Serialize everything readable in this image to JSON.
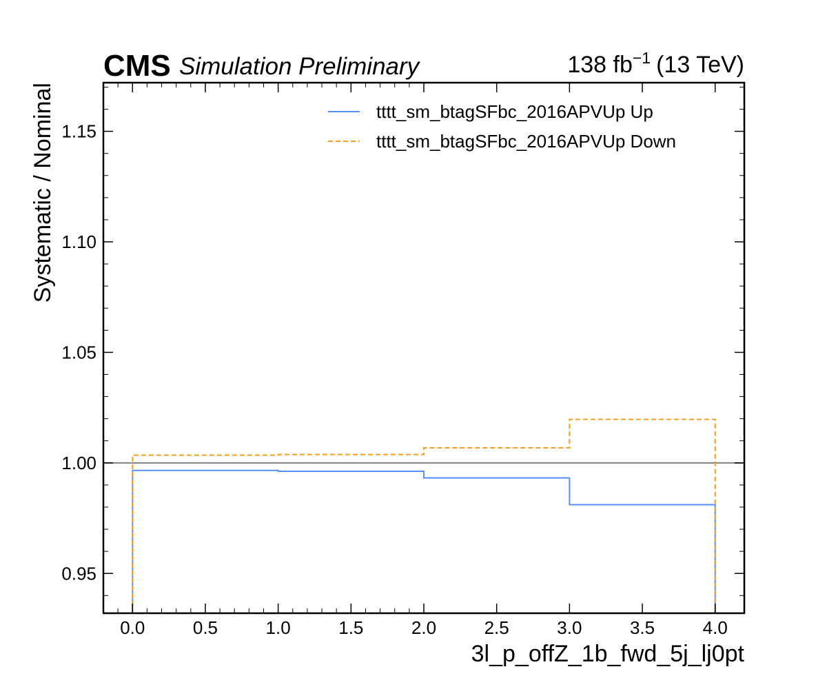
{
  "header": {
    "experiment": "CMS",
    "status": "Simulation Preliminary",
    "lumi_value": "138 fb",
    "lumi_exponent": "−1",
    "energy": "(13 TeV)"
  },
  "chart_data": {
    "type": "line",
    "drawstyle": "steps",
    "xlabel": "3l_p_offZ_1b_fwd_5j_lj0pt",
    "ylabel": "Systematic / Nominal",
    "xlim": [
      -0.2,
      4.2
    ],
    "ylim": [
      0.932,
      1.172
    ],
    "xticks": [
      0.0,
      0.5,
      1.0,
      1.5,
      2.0,
      2.5,
      3.0,
      3.5,
      4.0
    ],
    "xtick_labels": [
      "0.0",
      "0.5",
      "1.0",
      "1.5",
      "2.0",
      "2.5",
      "3.0",
      "3.5",
      "4.0"
    ],
    "yticks": [
      0.95,
      1.0,
      1.05,
      1.1,
      1.15
    ],
    "ytick_labels": [
      "0.95",
      "1.00",
      "1.05",
      "1.10",
      "1.15"
    ],
    "bin_edges": [
      0,
      1,
      2,
      3,
      4
    ],
    "reference_line": 1.0,
    "series": [
      {
        "name": "tttt_sm_btagSFbc_2016APVUp Up",
        "values": [
          0.9966,
          0.9962,
          0.9932,
          0.9811
        ],
        "color": "#5790fc",
        "style": "solid"
      },
      {
        "name": "tttt_sm_btagSFbc_2016APVUp Down",
        "values": [
          1.0035,
          1.0038,
          1.0068,
          1.0197
        ],
        "color": "#f89c20",
        "style": "dashed"
      }
    ],
    "reference_color": "#808080",
    "grid": false,
    "legend_position": "upper right"
  }
}
